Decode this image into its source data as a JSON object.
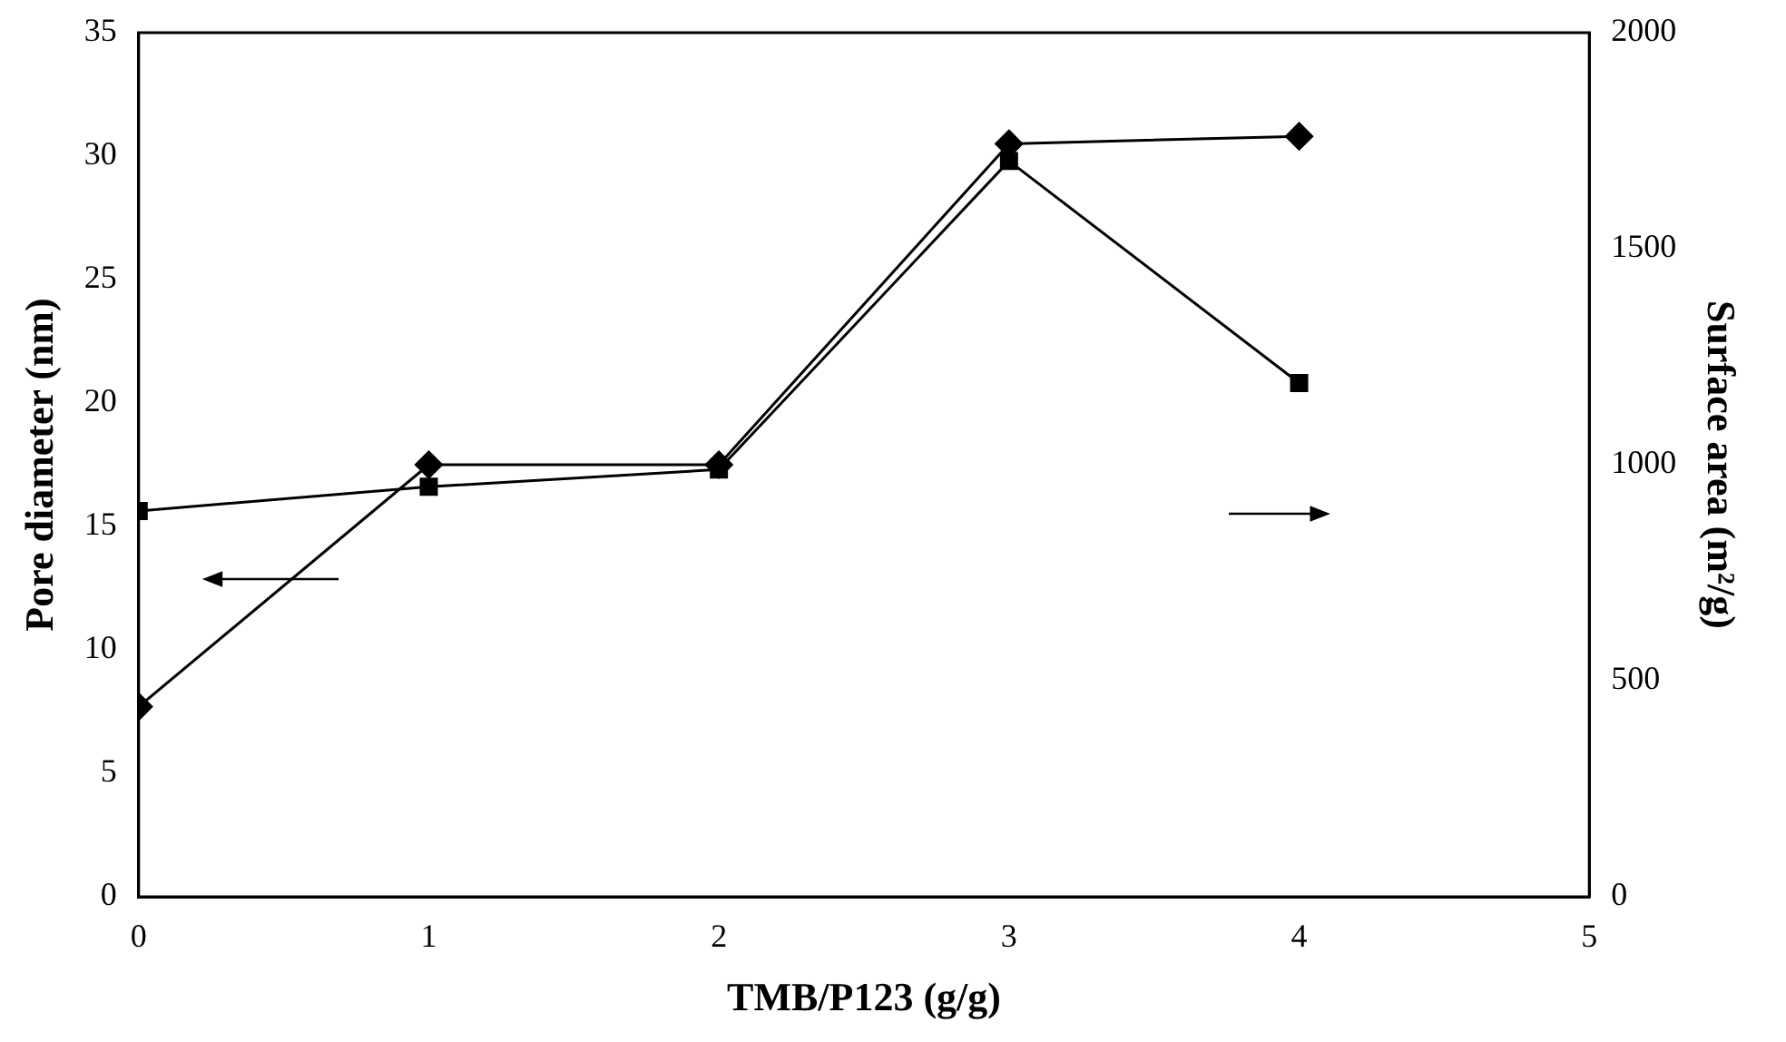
{
  "chart_data": {
    "type": "line",
    "xlabel": "TMB/P123 (g/g)",
    "ylabel": "Pore diameter (nm)",
    "y2label": "Surface area (m²/g)",
    "x": [
      0,
      1,
      2,
      3,
      4
    ],
    "series": [
      {
        "color": "#000000",
        "marker": "diamond",
        "values": [
          7.7,
          17.5,
          17.5,
          30.5,
          30.8
        ]
      },
      {
        "color": "#000000",
        "marker": "square",
        "axis": "y2",
        "values": [
          893,
          949,
          989,
          1703,
          1189
        ]
      }
    ],
    "xlim": [
      0,
      5
    ],
    "xticks": [
      0,
      1,
      2,
      3,
      4,
      5
    ],
    "ylim": [
      0,
      35
    ],
    "yticks": [
      0,
      5,
      10,
      15,
      20,
      25,
      30,
      35
    ],
    "y2lim": [
      0,
      2000
    ],
    "y2ticks": [
      0,
      500,
      1000,
      1500,
      2000
    ],
    "grid": false,
    "legend": false,
    "line_style": "solid"
  }
}
